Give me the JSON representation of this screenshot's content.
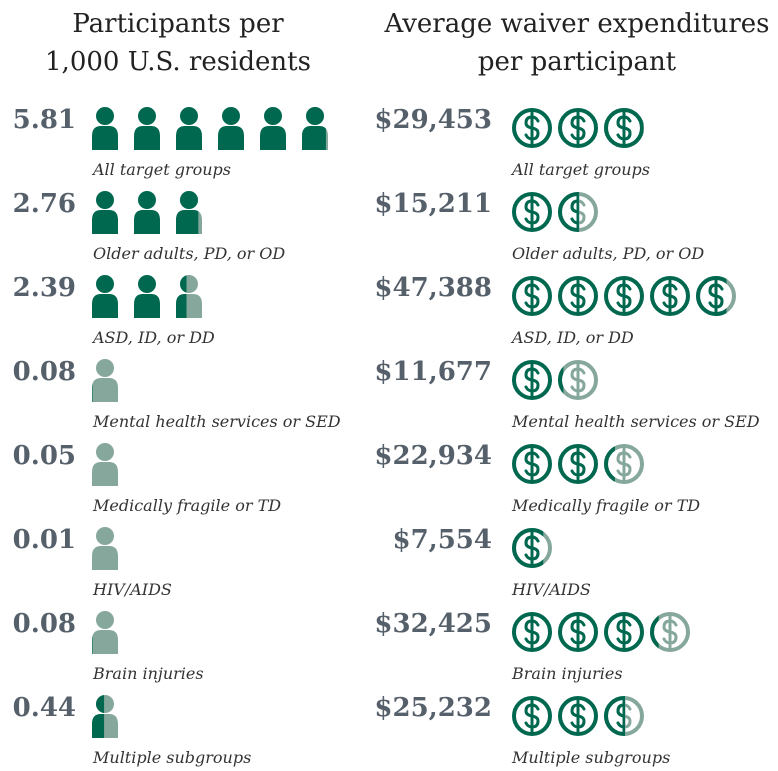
{
  "chart_data": [
    {
      "type": "pictogram",
      "icon": "person",
      "title": [
        "Participants per",
        "1,000 U.S. residents"
      ],
      "categories": [
        "All target groups",
        "Older adults, PD, or OD",
        "ASD, ID, or DD",
        "Mental health services or SED",
        "Medically fragile or TD",
        "HIV/AIDS",
        "Brain injuries",
        "Multiple subgroups"
      ],
      "values": [
        5.81,
        2.76,
        2.39,
        0.08,
        0.05,
        0.01,
        0.08,
        0.44
      ],
      "icon_value": 1,
      "color": "#00684f",
      "light_color": "#86a89c"
    },
    {
      "type": "pictogram",
      "icon": "dollar",
      "title": [
        "Average waiver expenditures",
        "per participant"
      ],
      "categories": [
        "All target groups",
        "Older adults, PD, or OD",
        "ASD, ID, or DD",
        "Mental health services or SED",
        "Medically fragile or TD",
        "HIV/AIDS",
        "Brain injuries",
        "Multiple subgroups"
      ],
      "values": [
        29453,
        15211,
        47388,
        11677,
        22934,
        7554,
        32425,
        25232
      ],
      "value_labels": [
        "$29,453",
        "$15,211",
        "$47,388",
        "$11,677",
        "$22,934",
        "$7,554",
        "$32,425",
        "$25,232"
      ],
      "icon_value": 10000,
      "color": "#00684f",
      "light_color": "#86a89c"
    }
  ]
}
